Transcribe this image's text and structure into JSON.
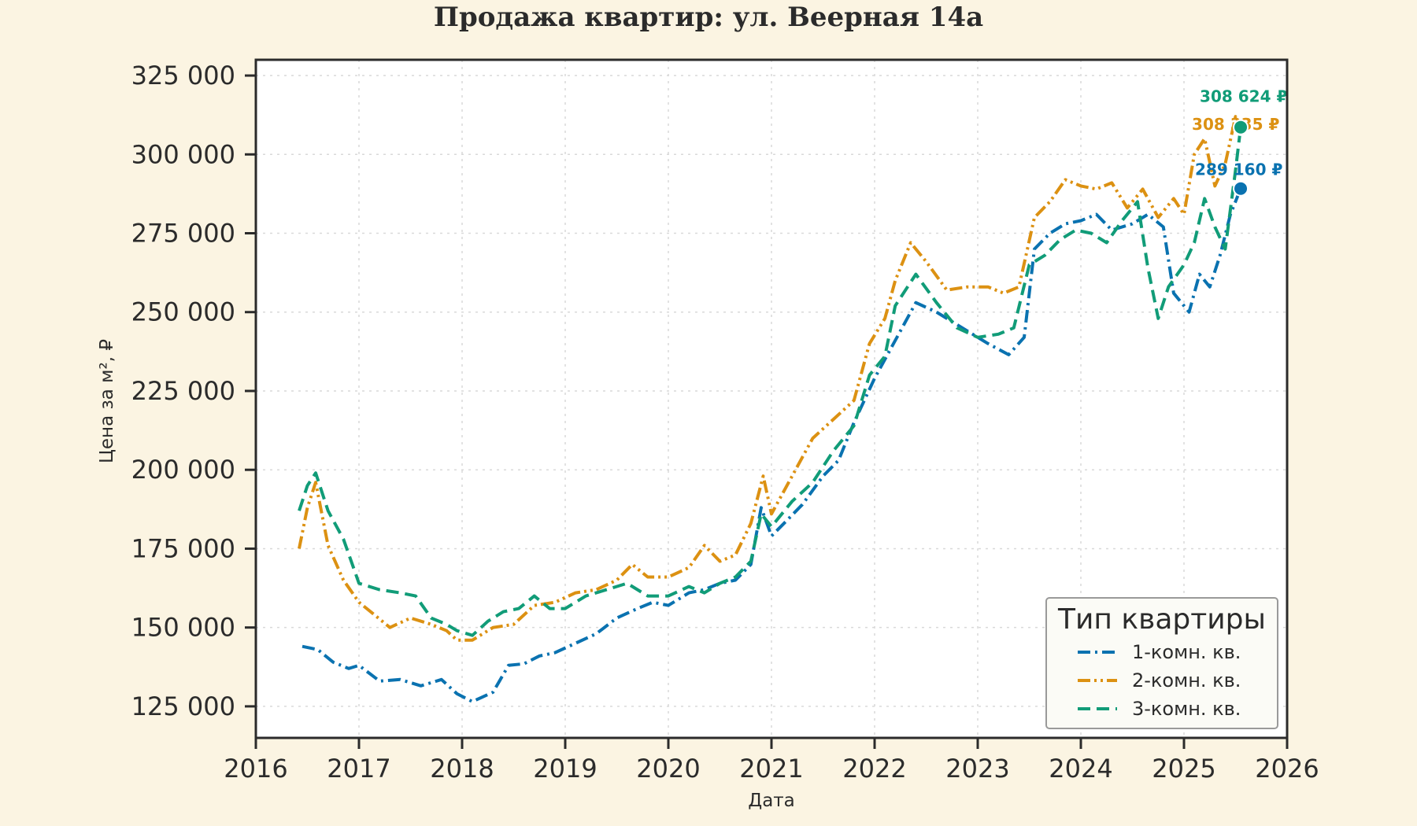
{
  "chart_data": {
    "type": "line",
    "title": "Продажа квартир: ул. Веерная 14а",
    "xlabel": "Дата",
    "ylabel": "Цена за м², ₽",
    "xlim": [
      2016,
      2026
    ],
    "ylim": [
      115000,
      330000
    ],
    "xticks": [
      2016,
      2017,
      2018,
      2019,
      2020,
      2021,
      2022,
      2023,
      2024,
      2025,
      2026
    ],
    "yticks": [
      125000,
      150000,
      175000,
      200000,
      225000,
      250000,
      275000,
      300000,
      325000
    ],
    "ytick_labels": [
      "125 000",
      "150 000",
      "175 000",
      "200 000",
      "225 000",
      "250 000",
      "275 000",
      "300 000",
      "325 000"
    ],
    "grid": true,
    "legend": {
      "title": "Тип квартиры",
      "placement": "bottom-right"
    },
    "series": [
      {
        "name": "1-комн. кв.",
        "color": "#0a72b0",
        "dash": "dashdot",
        "end_value": 289160,
        "end_label": "289 160 ₽",
        "x": [
          2016.45,
          2016.6,
          2016.75,
          2016.9,
          2017.0,
          2017.2,
          2017.4,
          2017.6,
          2017.8,
          2017.95,
          2018.1,
          2018.3,
          2018.45,
          2018.6,
          2018.75,
          2018.9,
          2019.1,
          2019.3,
          2019.5,
          2019.7,
          2019.85,
          2020.0,
          2020.2,
          2020.35,
          2020.5,
          2020.65,
          2020.8,
          2020.9,
          2021.0,
          2021.15,
          2021.3,
          2021.5,
          2021.65,
          2021.8,
          2022.0,
          2022.2,
          2022.4,
          2022.6,
          2022.8,
          2022.95,
          2023.1,
          2023.3,
          2023.45,
          2023.55,
          2023.7,
          2023.85,
          2024.0,
          2024.15,
          2024.3,
          2024.5,
          2024.65,
          2024.8,
          2024.9,
          2025.05,
          2025.15,
          2025.25,
          2025.35,
          2025.45,
          2025.55
        ],
        "y": [
          144000,
          143000,
          139000,
          137000,
          138000,
          133000,
          133500,
          131500,
          133500,
          129000,
          126500,
          129500,
          138000,
          138500,
          141000,
          142000,
          145000,
          148000,
          153000,
          156000,
          158000,
          157000,
          161000,
          162000,
          164000,
          165000,
          170000,
          188000,
          179000,
          184000,
          189000,
          198000,
          203000,
          215000,
          229000,
          241000,
          253000,
          250000,
          246000,
          243000,
          240000,
          236500,
          242000,
          270000,
          275000,
          278000,
          279000,
          281000,
          276000,
          278000,
          281000,
          277000,
          256000,
          250000,
          262000,
          258000,
          268000,
          281000,
          289160
        ]
      },
      {
        "name": "2-комн. кв.",
        "color": "#dc9112",
        "dash": "dashdotdot",
        "end_value": 308335,
        "end_label": "308 335 ₽",
        "x": [
          2016.42,
          2016.5,
          2016.58,
          2016.7,
          2016.85,
          2017.0,
          2017.15,
          2017.3,
          2017.5,
          2017.7,
          2017.85,
          2017.95,
          2018.1,
          2018.3,
          2018.5,
          2018.7,
          2018.9,
          2019.1,
          2019.3,
          2019.5,
          2019.65,
          2019.8,
          2020.0,
          2020.2,
          2020.35,
          2020.5,
          2020.65,
          2020.8,
          2020.92,
          2021.0,
          2021.2,
          2021.4,
          2021.6,
          2021.8,
          2021.95,
          2022.1,
          2022.2,
          2022.35,
          2022.5,
          2022.7,
          2022.9,
          2023.1,
          2023.25,
          2023.4,
          2023.55,
          2023.7,
          2023.85,
          2024.0,
          2024.15,
          2024.3,
          2024.45,
          2024.6,
          2024.75,
          2024.9,
          2025.0,
          2025.1,
          2025.2,
          2025.3,
          2025.4,
          2025.5,
          2025.55
        ],
        "y": [
          175000,
          188000,
          196000,
          176000,
          165000,
          158000,
          154000,
          150000,
          153000,
          151000,
          149000,
          146000,
          146000,
          150000,
          151000,
          157000,
          158000,
          161000,
          162000,
          165000,
          170000,
          166000,
          166000,
          169000,
          176000,
          171000,
          173000,
          183000,
          198000,
          186000,
          198000,
          210000,
          216000,
          222000,
          240000,
          248000,
          260000,
          272000,
          266000,
          257000,
          258000,
          258000,
          256000,
          258000,
          280000,
          285000,
          292000,
          290000,
          289000,
          291000,
          283000,
          289000,
          280000,
          286000,
          281000,
          300000,
          305000,
          290000,
          297000,
          312000,
          308335
        ]
      },
      {
        "name": "3-комн. кв.",
        "color": "#119c78",
        "dash": "dashed",
        "end_value": 308624,
        "end_label": "308 624 ₽",
        "x": [
          2016.42,
          2016.5,
          2016.58,
          2016.7,
          2016.85,
          2017.0,
          2017.2,
          2017.4,
          2017.55,
          2017.7,
          2017.85,
          2017.95,
          2018.1,
          2018.25,
          2018.4,
          2018.55,
          2018.7,
          2018.85,
          2019.0,
          2019.2,
          2019.4,
          2019.6,
          2019.8,
          2020.0,
          2020.2,
          2020.35,
          2020.5,
          2020.65,
          2020.8,
          2020.9,
          2021.0,
          2021.2,
          2021.4,
          2021.6,
          2021.8,
          2021.95,
          2022.1,
          2022.2,
          2022.4,
          2022.6,
          2022.8,
          2023.0,
          2023.2,
          2023.35,
          2023.5,
          2023.65,
          2023.8,
          2023.95,
          2024.1,
          2024.25,
          2024.4,
          2024.55,
          2024.65,
          2024.75,
          2024.85,
          2025.0,
          2025.1,
          2025.2,
          2025.3,
          2025.4,
          2025.5,
          2025.55
        ],
        "y": [
          187000,
          195000,
          199000,
          187000,
          178000,
          164000,
          162000,
          161000,
          160000,
          153000,
          151000,
          149000,
          147500,
          152000,
          155000,
          156000,
          160000,
          156000,
          156000,
          160000,
          162000,
          164000,
          160000,
          160000,
          163000,
          161000,
          164000,
          166000,
          171000,
          186000,
          182000,
          190000,
          196000,
          206000,
          214000,
          230000,
          236000,
          252000,
          262000,
          253000,
          245000,
          242000,
          243000,
          245000,
          265000,
          268000,
          273000,
          276000,
          275000,
          272000,
          279000,
          285000,
          264000,
          248000,
          258000,
          265000,
          272000,
          286000,
          277000,
          270000,
          295000,
          308624
        ]
      }
    ]
  }
}
